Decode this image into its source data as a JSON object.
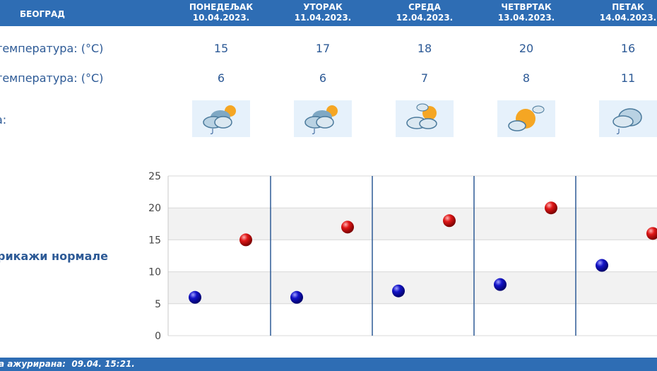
{
  "header": {
    "city": "БЕОГРАД",
    "days": [
      {
        "name": "ПОНЕДЕЉАК",
        "date": "10.04.2023."
      },
      {
        "name": "УТОРАК",
        "date": "11.04.2023."
      },
      {
        "name": "СРЕДА",
        "date": "12.04.2023."
      },
      {
        "name": "ЧЕТВРТАК",
        "date": "13.04.2023."
      },
      {
        "name": "ПЕТАК",
        "date": "14.04.2023."
      }
    ]
  },
  "rows": {
    "max_label": "температура: (°C)",
    "min_label": "температура: (°C)",
    "weather_label": "а:"
  },
  "max_temps": [
    "15",
    "17",
    "18",
    "20",
    "16"
  ],
  "min_temps": [
    "6",
    "6",
    "7",
    "8",
    "11"
  ],
  "weather_icons": [
    "partly-cloudy-rain-icon",
    "partly-cloudy-rain-icon",
    "sun-clouds-icon",
    "sunny-cloud-icon",
    "cloud-rain-icon"
  ],
  "normals_label": "рикажи нормале",
  "footer": {
    "prefix": "а ажурирана:",
    "time": "09.04. 15:21."
  },
  "chart_data": {
    "type": "scatter",
    "categories": [
      "ПОНЕДЕЉАК",
      "УТОРАК",
      "СРЕДА",
      "ЧЕТВРТАК",
      "ПЕТАК"
    ],
    "series": [
      {
        "name": "",
        "color": "#1010c0",
        "values": [
          6,
          6,
          7,
          8,
          11
        ]
      },
      {
        "name": "",
        "color": "#d01010",
        "values": [
          15,
          17,
          18,
          20,
          16
        ]
      }
    ],
    "ylim": [
      0,
      25
    ],
    "yticks": [
      "0",
      "5",
      "10",
      "15",
      "20",
      "25"
    ],
    "grid": true,
    "colors": {
      "band": "#f2f2f2",
      "day_divider": "#2d5a96"
    }
  }
}
